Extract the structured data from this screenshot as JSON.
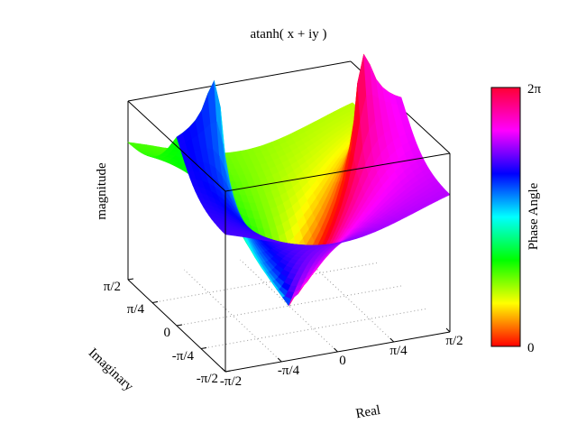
{
  "chart_data": {
    "type": "surface",
    "title": "atanh( x + iy )",
    "xlabel": "Real",
    "ylabel": "Imaginary",
    "zlabel": "magnitude",
    "colorbar_label": "Phase Angle",
    "x_ticks": [
      "-π/2",
      "-π/4",
      "0",
      "π/4",
      "π/2"
    ],
    "y_ticks": [
      "-π/2",
      "-π/4",
      "0",
      "π/4",
      "π/2"
    ],
    "colorbar_ticks": [
      "0",
      "2π"
    ],
    "xlim": [
      -1.5708,
      1.5708
    ],
    "ylim": [
      -1.5708,
      1.5708
    ],
    "grid": true,
    "colormap": [
      "#ff0000",
      "#ffff00",
      "#00ff00",
      "#00ffff",
      "#0000ff",
      "#ff00ff",
      "#ff0000"
    ],
    "function": "atanh(x+iy)"
  }
}
